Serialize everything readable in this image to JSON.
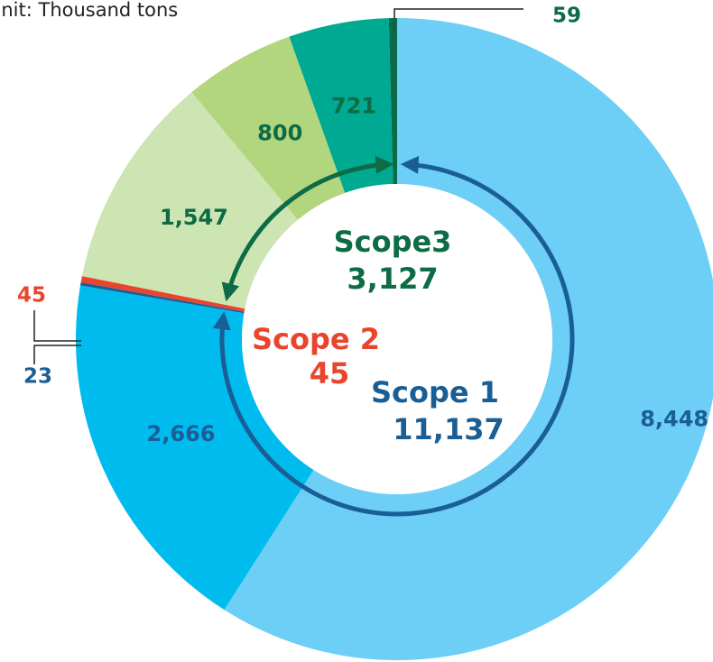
{
  "chart_data": {
    "type": "donut",
    "title": "Unit: Thousand tons",
    "series": [
      {
        "name": "Scope 1",
        "color": "#1a5e96",
        "total": 11137,
        "total_label": "11,137",
        "values": [
          8448,
          2666,
          23
        ],
        "value_labels": [
          "8,448",
          "2,666",
          "23"
        ],
        "colors": [
          "#6dcff6",
          "#00bbee",
          "#1a5e96"
        ]
      },
      {
        "name": "Scope 2",
        "color": "#e8452c",
        "total": 45,
        "total_label": "45",
        "values": [
          45
        ],
        "value_labels": [
          "45"
        ],
        "colors": [
          "#e8452c"
        ]
      },
      {
        "name": "Scope3",
        "color": "#0d6b45",
        "total": 3127,
        "total_label": "3,127",
        "values": [
          1547,
          800,
          721,
          59
        ],
        "value_labels": [
          "1,547",
          "800",
          "721",
          "59"
        ],
        "colors": [
          "#cde4b3",
          "#b1d67e",
          "#00a992",
          "#0a6b48"
        ]
      }
    ]
  }
}
